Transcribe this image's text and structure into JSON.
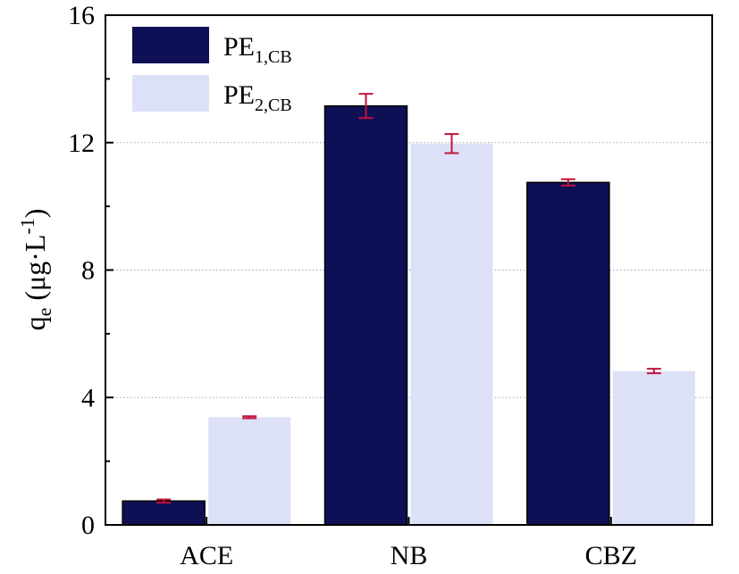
{
  "chart_data": {
    "type": "bar",
    "categories": [
      "ACE",
      "NB",
      "CBZ"
    ],
    "series": [
      {
        "name": "PE",
        "name_sub": "1,CB",
        "color": "#0f0f55",
        "values": [
          0.75,
          13.15,
          10.75
        ],
        "errors": [
          0.05,
          0.38,
          0.1
        ]
      },
      {
        "name": "PE",
        "name_sub": "2,CB",
        "color": "#dde1f8",
        "values": [
          3.38,
          11.97,
          4.83
        ],
        "errors": [
          0.03,
          0.3,
          0.07
        ]
      }
    ],
    "error_bar_color": "#c0143c",
    "ylabel": {
      "main": "q",
      "sub": "e",
      "units_pre": " (μg·L",
      "units_sup": "-1",
      "units_post": ")"
    },
    "ylim": [
      0,
      16
    ],
    "yticks": [
      0,
      4,
      8,
      12,
      16
    ],
    "ytick_labels": [
      "0",
      "4",
      "8",
      "12",
      "16"
    ],
    "grid": "dotted horizontal at major ticks",
    "legend": "top-left"
  }
}
